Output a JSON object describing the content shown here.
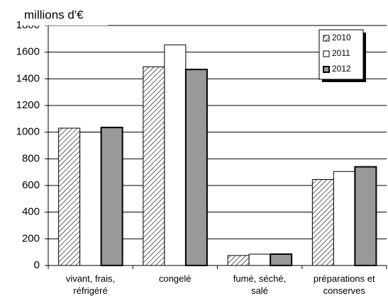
{
  "chart_data": {
    "type": "bar",
    "title": "millions d'€",
    "categories": [
      "vivant, frais,\nréfrigéré",
      "congelé",
      "fumé, séché,\nsalé",
      "préparations et\nconserves"
    ],
    "series": [
      {
        "name": "2010",
        "color": "#ffffff",
        "pattern": "diagonal-hatch",
        "values": [
          1030,
          1490,
          75,
          645
        ]
      },
      {
        "name": "2011",
        "color": "#ffffff",
        "values": [
          1000,
          1655,
          85,
          705
        ]
      },
      {
        "name": "2012",
        "color": "#999999",
        "values": [
          1035,
          1470,
          85,
          740
        ]
      }
    ],
    "ylim": [
      0,
      1800
    ],
    "yticks": [
      0,
      200,
      400,
      600,
      800,
      1000,
      1200,
      1400,
      1600,
      1800
    ],
    "grid": true,
    "legend": "top-right"
  }
}
